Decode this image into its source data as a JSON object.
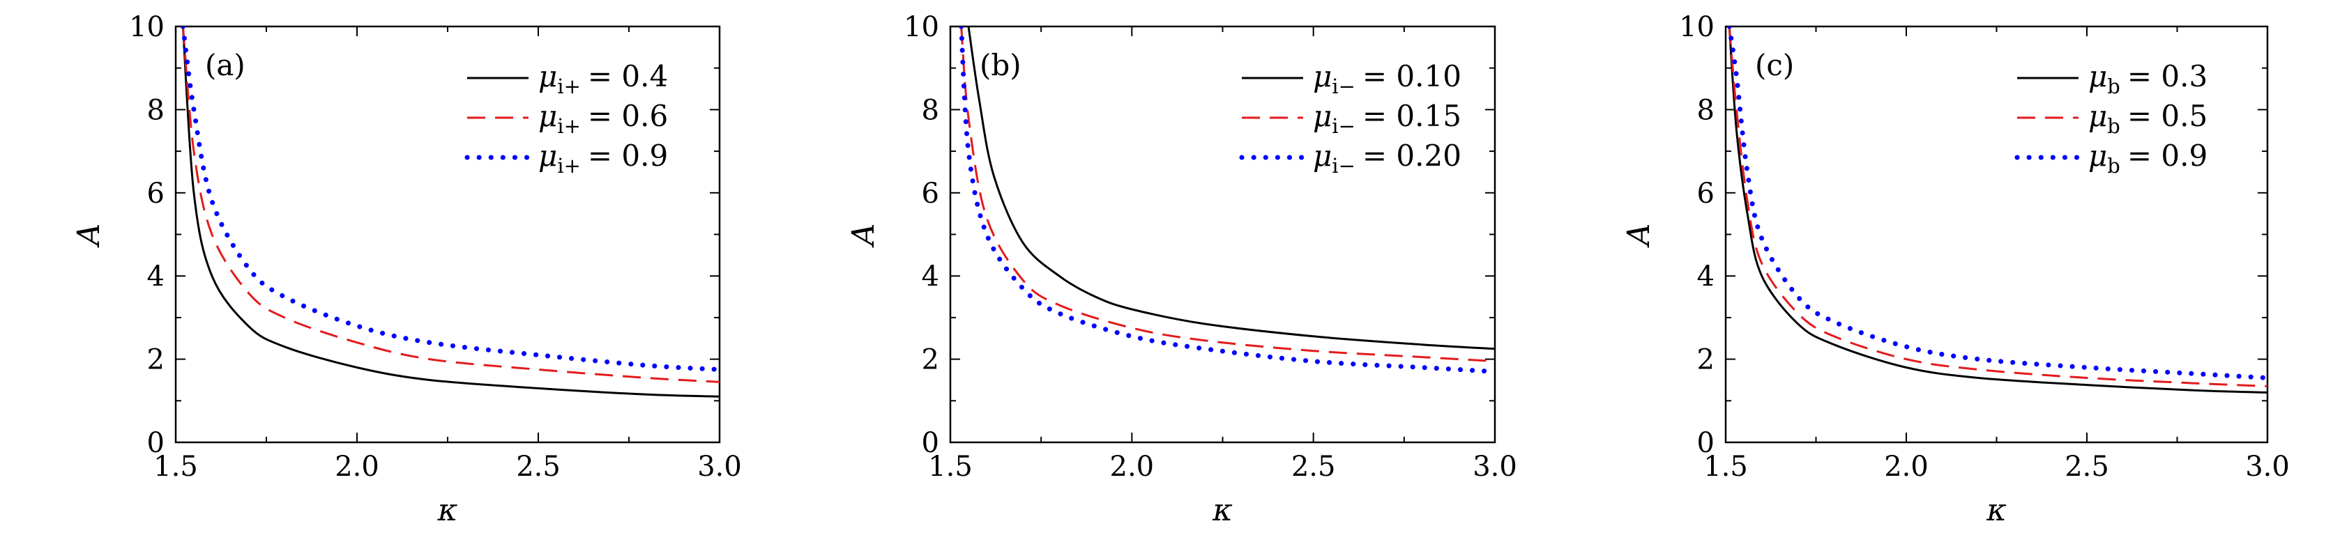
{
  "chart_data": [
    {
      "type": "line",
      "panel_label": "(a)",
      "xlabel": "κ",
      "ylabel": "A",
      "xlim": [
        1.5,
        3.0
      ],
      "ylim": [
        0,
        10
      ],
      "xticks": [
        "1.5",
        "2.0",
        "2.5",
        "3.0"
      ],
      "yticks": [
        "0",
        "2",
        "4",
        "6",
        "8",
        "10"
      ],
      "grid": false,
      "legend_position": "top-right",
      "series": [
        {
          "name": "μ_i+ = 0.4",
          "legend_symbol": "μ",
          "legend_sub": "i+",
          "legend_value": "= 0.4",
          "color": "#000000",
          "style": "solid",
          "x": [
            1.52,
            1.55,
            1.6,
            1.7,
            1.8,
            2.0,
            2.2,
            2.5,
            2.8,
            3.0
          ],
          "y": [
            10.0,
            6.0,
            4.0,
            2.8,
            2.3,
            1.8,
            1.5,
            1.3,
            1.15,
            1.1
          ]
        },
        {
          "name": "μ_i+ = 0.6",
          "legend_symbol": "μ",
          "legend_sub": "i+",
          "legend_value": "= 0.6",
          "color": "#e41a1c",
          "style": "dashed",
          "x": [
            1.52,
            1.55,
            1.6,
            1.7,
            1.8,
            2.0,
            2.2,
            2.5,
            2.8,
            3.0
          ],
          "y": [
            10.0,
            7.0,
            5.0,
            3.6,
            3.0,
            2.4,
            2.0,
            1.75,
            1.55,
            1.45
          ]
        },
        {
          "name": "μ_i+ = 0.9",
          "legend_symbol": "μ",
          "legend_sub": "i+",
          "legend_value": "= 0.9",
          "color": "#0000ff",
          "style": "dotted",
          "x": [
            1.52,
            1.55,
            1.6,
            1.7,
            1.8,
            2.0,
            2.2,
            2.5,
            2.8,
            3.0
          ],
          "y": [
            10.0,
            8.0,
            5.8,
            4.2,
            3.5,
            2.8,
            2.4,
            2.1,
            1.85,
            1.75
          ]
        }
      ]
    },
    {
      "type": "line",
      "panel_label": "(b)",
      "xlabel": "κ",
      "ylabel": "A",
      "xlim": [
        1.5,
        3.0
      ],
      "ylim": [
        0,
        10
      ],
      "xticks": [
        "1.5",
        "2.0",
        "2.5",
        "3.0"
      ],
      "yticks": [
        "0",
        "2",
        "4",
        "6",
        "8",
        "10"
      ],
      "grid": false,
      "legend_position": "top-right",
      "series": [
        {
          "name": "μ_i− = 0.10",
          "legend_symbol": "μ",
          "legend_sub": "i−",
          "legend_value": "= 0.10",
          "color": "#000000",
          "style": "solid",
          "x": [
            1.55,
            1.58,
            1.62,
            1.7,
            1.8,
            1.9,
            2.0,
            2.2,
            2.5,
            2.8,
            3.0
          ],
          "y": [
            10.0,
            8.2,
            6.4,
            4.8,
            4.0,
            3.5,
            3.2,
            2.85,
            2.55,
            2.35,
            2.25
          ]
        },
        {
          "name": "μ_i− = 0.15",
          "legend_symbol": "μ",
          "legend_sub": "i−",
          "legend_value": "= 0.15",
          "color": "#e41a1c",
          "style": "dashed",
          "x": [
            1.53,
            1.55,
            1.6,
            1.7,
            1.8,
            2.0,
            2.2,
            2.5,
            2.8,
            3.0
          ],
          "y": [
            10.0,
            7.8,
            5.4,
            3.9,
            3.3,
            2.75,
            2.45,
            2.2,
            2.05,
            1.95
          ]
        },
        {
          "name": "μ_i− = 0.20",
          "legend_symbol": "μ",
          "legend_sub": "i−",
          "legend_value": "= 0.20",
          "color": "#0000ff",
          "style": "dotted",
          "x": [
            1.53,
            1.55,
            1.6,
            1.7,
            1.8,
            2.0,
            2.2,
            2.5,
            2.8,
            3.0
          ],
          "y": [
            10.0,
            7.0,
            5.0,
            3.7,
            3.1,
            2.55,
            2.25,
            1.95,
            1.8,
            1.7
          ]
        }
      ]
    },
    {
      "type": "line",
      "panel_label": "(c)",
      "xlabel": "κ",
      "ylabel": "A",
      "xlim": [
        1.5,
        3.0
      ],
      "ylim": [
        0,
        10
      ],
      "xticks": [
        "1.5",
        "2.0",
        "2.5",
        "3.0"
      ],
      "yticks": [
        "0",
        "2",
        "4",
        "6",
        "8",
        "10"
      ],
      "grid": false,
      "legend_position": "top-right",
      "series": [
        {
          "name": "μ_b = 0.3",
          "legend_symbol": "μ",
          "legend_sub": "b",
          "legend_value": "= 0.3",
          "color": "#000000",
          "style": "solid",
          "x": [
            1.51,
            1.53,
            1.56,
            1.6,
            1.7,
            1.8,
            2.0,
            2.2,
            2.5,
            2.8,
            3.0
          ],
          "y": [
            10.0,
            7.5,
            5.5,
            4.0,
            2.85,
            2.35,
            1.8,
            1.55,
            1.38,
            1.25,
            1.2
          ]
        },
        {
          "name": "μ_b = 0.5",
          "legend_symbol": "μ",
          "legend_sub": "b",
          "legend_value": "= 0.5",
          "color": "#e41a1c",
          "style": "dashed",
          "x": [
            1.51,
            1.53,
            1.56,
            1.6,
            1.7,
            1.8,
            2.0,
            2.2,
            2.5,
            2.8,
            3.0
          ],
          "y": [
            10.0,
            8.0,
            5.8,
            4.3,
            3.1,
            2.55,
            2.0,
            1.75,
            1.55,
            1.42,
            1.35
          ]
        },
        {
          "name": "μ_b = 0.9",
          "legend_symbol": "μ",
          "legend_sub": "b",
          "legend_value": "= 0.9",
          "color": "#0000ff",
          "style": "dotted",
          "x": [
            1.51,
            1.53,
            1.56,
            1.6,
            1.7,
            1.8,
            2.0,
            2.2,
            2.5,
            2.8,
            3.0
          ],
          "y": [
            10.0,
            8.8,
            6.5,
            4.9,
            3.5,
            2.9,
            2.3,
            2.0,
            1.8,
            1.65,
            1.55
          ]
        }
      ]
    }
  ]
}
